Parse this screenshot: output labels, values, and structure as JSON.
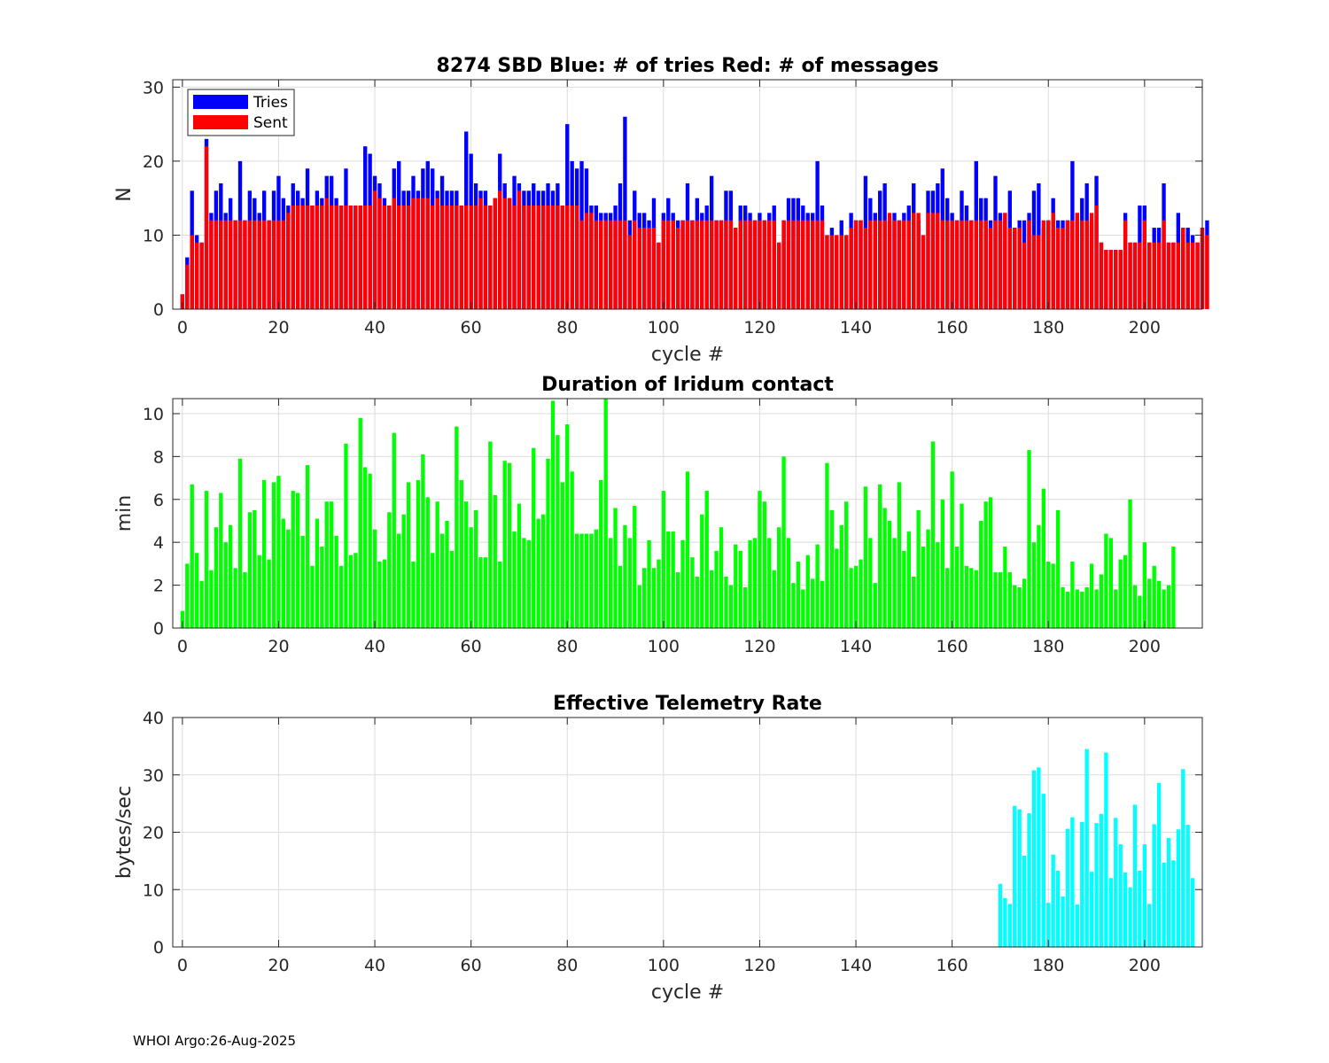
{
  "footer": {
    "text": "WHOI Argo:26-Aug-2025"
  },
  "chart_data": [
    {
      "type": "bar",
      "title": "8274 SBD  Blue: # of tries   Red: # of messages",
      "xlabel": "cycle #",
      "ylabel": "N",
      "xlim": [
        -2,
        212
      ],
      "ylim": [
        0,
        31
      ],
      "xticks": [
        0,
        20,
        40,
        60,
        80,
        100,
        120,
        140,
        160,
        180,
        200
      ],
      "yticks": [
        0,
        10,
        20,
        30
      ],
      "grid": true,
      "legend": "top-left",
      "x_start": 0,
      "series": [
        {
          "name": "Tries",
          "color": "#0000ff",
          "values": [
            2,
            7,
            16,
            10,
            9,
            23,
            13,
            16,
            17,
            13,
            15,
            12,
            20,
            12,
            16,
            15,
            13,
            16,
            12,
            16,
            18,
            15,
            14,
            17,
            16,
            15,
            19,
            14,
            16,
            15,
            18,
            18,
            15,
            14,
            19,
            14,
            14,
            14,
            22,
            21,
            18,
            17,
            15,
            14,
            19,
            20,
            16,
            16,
            18,
            16,
            19,
            20,
            19,
            16,
            18,
            16,
            16,
            16,
            14,
            24,
            21,
            17,
            16,
            16,
            14,
            15,
            21,
            17,
            15,
            18,
            17,
            16,
            16,
            17,
            16,
            16,
            17,
            16,
            17,
            14,
            25,
            20,
            19,
            20,
            19,
            14,
            14,
            13,
            13,
            13,
            14,
            17,
            26,
            12,
            16,
            13,
            13,
            12,
            15,
            9,
            13,
            15,
            13,
            12,
            12,
            17,
            12,
            15,
            13,
            14,
            18,
            12,
            12,
            16,
            16,
            11,
            14,
            14,
            13,
            12,
            13,
            12,
            13,
            14,
            9,
            12,
            15,
            15,
            15,
            14,
            13,
            13,
            20,
            14,
            10,
            11,
            10,
            12,
            10,
            13,
            12,
            12,
            18,
            15,
            13,
            16,
            17,
            12,
            13,
            12,
            13,
            14,
            17,
            12,
            10,
            16,
            16,
            17,
            19,
            15,
            13,
            12,
            16,
            14,
            12,
            20,
            15,
            15,
            12,
            18,
            13,
            13,
            16,
            11,
            12,
            12,
            13,
            16,
            17,
            11,
            12,
            15,
            12,
            12,
            12,
            20,
            13,
            15,
            17,
            12,
            18,
            9,
            8,
            8,
            8,
            8,
            13,
            9,
            9,
            14,
            14,
            9,
            11,
            11,
            17,
            9,
            9,
            13,
            11,
            11,
            10,
            9,
            11,
            12
          ]
        },
        {
          "name": "Sent",
          "color": "#ff0000",
          "values": [
            2,
            6,
            10,
            9,
            9,
            22,
            12,
            12,
            12,
            12,
            12,
            12,
            12,
            12,
            12,
            12,
            12,
            12,
            12,
            12,
            12,
            12,
            13,
            14,
            14,
            14,
            14,
            14,
            14,
            14,
            15,
            14,
            14,
            14,
            14,
            14,
            14,
            14,
            14,
            14,
            16,
            15,
            14,
            14,
            15,
            14,
            14,
            14,
            15,
            15,
            15,
            15,
            14,
            15,
            14,
            14,
            14,
            14,
            14,
            14,
            14,
            14,
            15,
            14,
            14,
            15,
            16,
            15,
            15,
            14,
            16,
            14,
            14,
            14,
            14,
            14,
            14,
            14,
            14,
            14,
            14,
            14,
            14,
            12,
            13,
            13,
            12,
            12,
            12,
            12,
            12,
            12,
            12,
            10,
            12,
            11,
            11,
            11,
            11,
            9,
            12,
            12,
            12,
            11,
            12,
            12,
            12,
            12,
            12,
            12,
            12,
            12,
            12,
            12,
            12,
            11,
            12,
            12,
            12,
            12,
            12,
            12,
            12,
            12,
            9,
            12,
            12,
            12,
            12,
            12,
            12,
            12,
            12,
            12,
            10,
            10,
            10,
            10,
            10,
            11,
            12,
            12,
            11,
            12,
            12,
            12,
            12,
            13,
            12,
            12,
            12,
            12,
            13,
            13,
            10,
            13,
            13,
            13,
            12,
            12,
            12,
            12,
            12,
            12,
            12,
            12,
            12,
            12,
            11,
            12,
            12,
            13,
            11,
            11,
            11,
            9,
            12,
            10,
            10,
            12,
            12,
            13,
            11,
            11,
            12,
            12,
            13,
            12,
            12,
            13,
            14,
            9,
            8,
            8,
            8,
            8,
            12,
            9,
            9,
            9,
            12,
            9,
            9,
            9,
            12,
            9,
            9,
            9,
            11,
            9,
            9,
            9,
            11,
            10
          ]
        }
      ]
    },
    {
      "type": "bar",
      "title": "Duration of Iridum contact",
      "xlabel": "",
      "ylabel": "min",
      "xlim": [
        -2,
        212
      ],
      "ylim": [
        0,
        10.7
      ],
      "xticks": [
        0,
        20,
        40,
        60,
        80,
        100,
        120,
        140,
        160,
        180,
        200
      ],
      "yticks": [
        0,
        2,
        4,
        6,
        8,
        10
      ],
      "grid": true,
      "x_start": 0,
      "series": [
        {
          "name": "Duration",
          "color": "#00ff00",
          "values": [
            0.8,
            3.0,
            6.7,
            3.5,
            2.2,
            6.4,
            2.7,
            4.7,
            6.3,
            4.0,
            4.8,
            2.8,
            7.9,
            2.6,
            5.4,
            5.5,
            3.4,
            6.9,
            3.2,
            6.8,
            7.1,
            5.1,
            4.6,
            6.4,
            6.3,
            4.3,
            7.6,
            2.9,
            5.1,
            3.8,
            5.9,
            5.9,
            4.3,
            2.9,
            8.6,
            3.4,
            3.5,
            9.8,
            7.5,
            7.2,
            4.6,
            3.1,
            3.2,
            5.4,
            9.1,
            4.4,
            5.3,
            6.8,
            3.1,
            6.9,
            8.1,
            6.1,
            3.5,
            5.9,
            4.4,
            5.0,
            3.6,
            9.4,
            6.9,
            5.9,
            4.7,
            5.5,
            3.3,
            3.3,
            8.7,
            6.2,
            3.1,
            7.8,
            7.7,
            4.5,
            5.8,
            4.2,
            4.1,
            8.4,
            5.1,
            5.3,
            7.9,
            10.6,
            9.0,
            6.8,
            9.5,
            7.3,
            4.4,
            4.4,
            4.4,
            4.4,
            4.6,
            6.9,
            10.7,
            4.2,
            5.6,
            2.9,
            4.8,
            4.2,
            5.7,
            2.0,
            2.8,
            4.1,
            2.8,
            3.2,
            6.4,
            4.5,
            4.5,
            2.6,
            4.1,
            7.3,
            3.3,
            2.4,
            5.3,
            6.4,
            2.7,
            3.6,
            4.7,
            2.4,
            2.0,
            3.9,
            3.6,
            1.9,
            4.1,
            4.2,
            6.4,
            5.9,
            4.2,
            2.7,
            4.7,
            8.0,
            4.2,
            2.1,
            3.1,
            1.8,
            3.4,
            2.3,
            3.9,
            2.2,
            7.7,
            5.5,
            3.7,
            4.8,
            5.9,
            2.8,
            2.9,
            3.2,
            6.6,
            4.2,
            2.1,
            6.7,
            5.6,
            5.0,
            4.2,
            6.8,
            3.6,
            4.5,
            2.4,
            5.5,
            3.8,
            4.6,
            8.7,
            4.0,
            6.0,
            2.8,
            7.3,
            3.8,
            5.8,
            2.9,
            2.8,
            2.7,
            5.0,
            5.9,
            6.1,
            2.6,
            2.6,
            3.8,
            2.6,
            2.0,
            1.9,
            2.3,
            8.3,
            4.0,
            4.8,
            6.5,
            3.1,
            3.0,
            5.5,
            1.9,
            1.7,
            3.1,
            1.8,
            1.7,
            1.9,
            3.0,
            1.8,
            2.5,
            4.4,
            4.2,
            1.8,
            3.2,
            3.4,
            6.0,
            2.0,
            1.5,
            4.0,
            2.3,
            2.9,
            2.2,
            1.8,
            2.0,
            3.8
          ]
        }
      ]
    },
    {
      "type": "bar",
      "title": "Effective Telemetry Rate",
      "xlabel": "cycle #",
      "ylabel": "bytes/sec",
      "xlim": [
        -2,
        212
      ],
      "ylim": [
        0,
        40
      ],
      "xticks": [
        0,
        20,
        40,
        60,
        80,
        100,
        120,
        140,
        160,
        180,
        200
      ],
      "yticks": [
        0,
        10,
        20,
        30,
        40
      ],
      "grid": true,
      "x_start": 170,
      "series": [
        {
          "name": "Rate",
          "color": "#00ffff",
          "values": [
            11.0,
            8.5,
            7.5,
            24.6,
            24.0,
            15.9,
            23.3,
            30.8,
            31.3,
            26.7,
            7.7,
            16.1,
            13.3,
            8.8,
            20.6,
            22.6,
            7.4,
            21.8,
            34.5,
            13.1,
            21.6,
            23.2,
            33.9,
            12.0,
            22.5,
            17.9,
            13.0,
            10.4,
            24.8,
            13.3,
            17.9,
            7.5,
            21.4,
            28.6,
            14.7,
            19.0,
            15.1,
            20.5,
            31.0,
            21.3,
            12.0
          ]
        }
      ]
    }
  ]
}
